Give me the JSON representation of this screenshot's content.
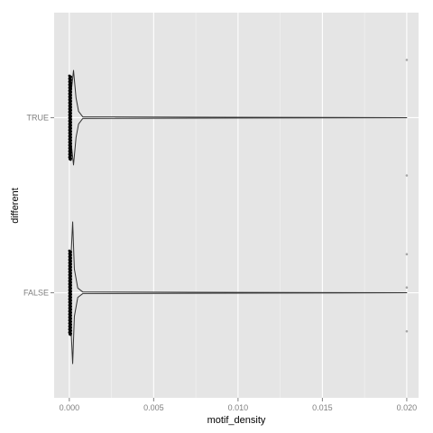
{
  "chart_data": {
    "type": "violin",
    "orientation": "horizontal",
    "xlabel": "motif_density",
    "ylabel": "different",
    "xlim": [
      -0.0009,
      0.0207
    ],
    "x_ticks": [
      {
        "value": 0.0,
        "label": "0.000"
      },
      {
        "value": 0.005,
        "label": "0.005"
      },
      {
        "value": 0.01,
        "label": "0.010"
      },
      {
        "value": 0.015,
        "label": "0.015"
      },
      {
        "value": 0.02,
        "label": "0.020"
      }
    ],
    "categories": [
      "FALSE",
      "TRUE"
    ],
    "grid": true,
    "legend": "none",
    "colors": {
      "panel": "#e5e5e5",
      "grid_major": "#ffffff",
      "grid_minor": "#f2f2f2",
      "violin": "#333333",
      "points": "#000000",
      "outliers": "#a6a6a6"
    },
    "violins": [
      {
        "category": "TRUE",
        "profile": [
          {
            "x": 0.0,
            "w": 0.0
          },
          {
            "x": 0.0001,
            "w": 0.3
          },
          {
            "x": 0.00025,
            "w": 0.6
          },
          {
            "x": 0.0004,
            "w": 0.25
          },
          {
            "x": 0.00055,
            "w": 0.08
          },
          {
            "x": 0.0008,
            "w": 0.01
          },
          {
            "x": 0.02,
            "w": 0.0
          }
        ],
        "points_x": [
          0.0,
          0.0001
        ],
        "outliers": [
          {
            "x": 0.02,
            "offset": 0.33
          },
          {
            "x": 0.02,
            "offset": -0.33
          }
        ]
      },
      {
        "category": "FALSE",
        "profile": [
          {
            "x": 0.0,
            "w": 0.0
          },
          {
            "x": 0.0001,
            "w": 0.45
          },
          {
            "x": 0.0002,
            "w": 0.9
          },
          {
            "x": 0.0003,
            "w": 0.3
          },
          {
            "x": 0.0005,
            "w": 0.06
          },
          {
            "x": 0.0008,
            "w": 0.01
          },
          {
            "x": 0.02,
            "w": 0.0
          }
        ],
        "points_x": [
          0.0,
          0.0001
        ],
        "outliers": [
          {
            "x": 0.02,
            "offset": 0.22
          },
          {
            "x": 0.02,
            "offset": 0.03
          },
          {
            "x": 0.02,
            "offset": -0.22
          }
        ]
      }
    ]
  }
}
